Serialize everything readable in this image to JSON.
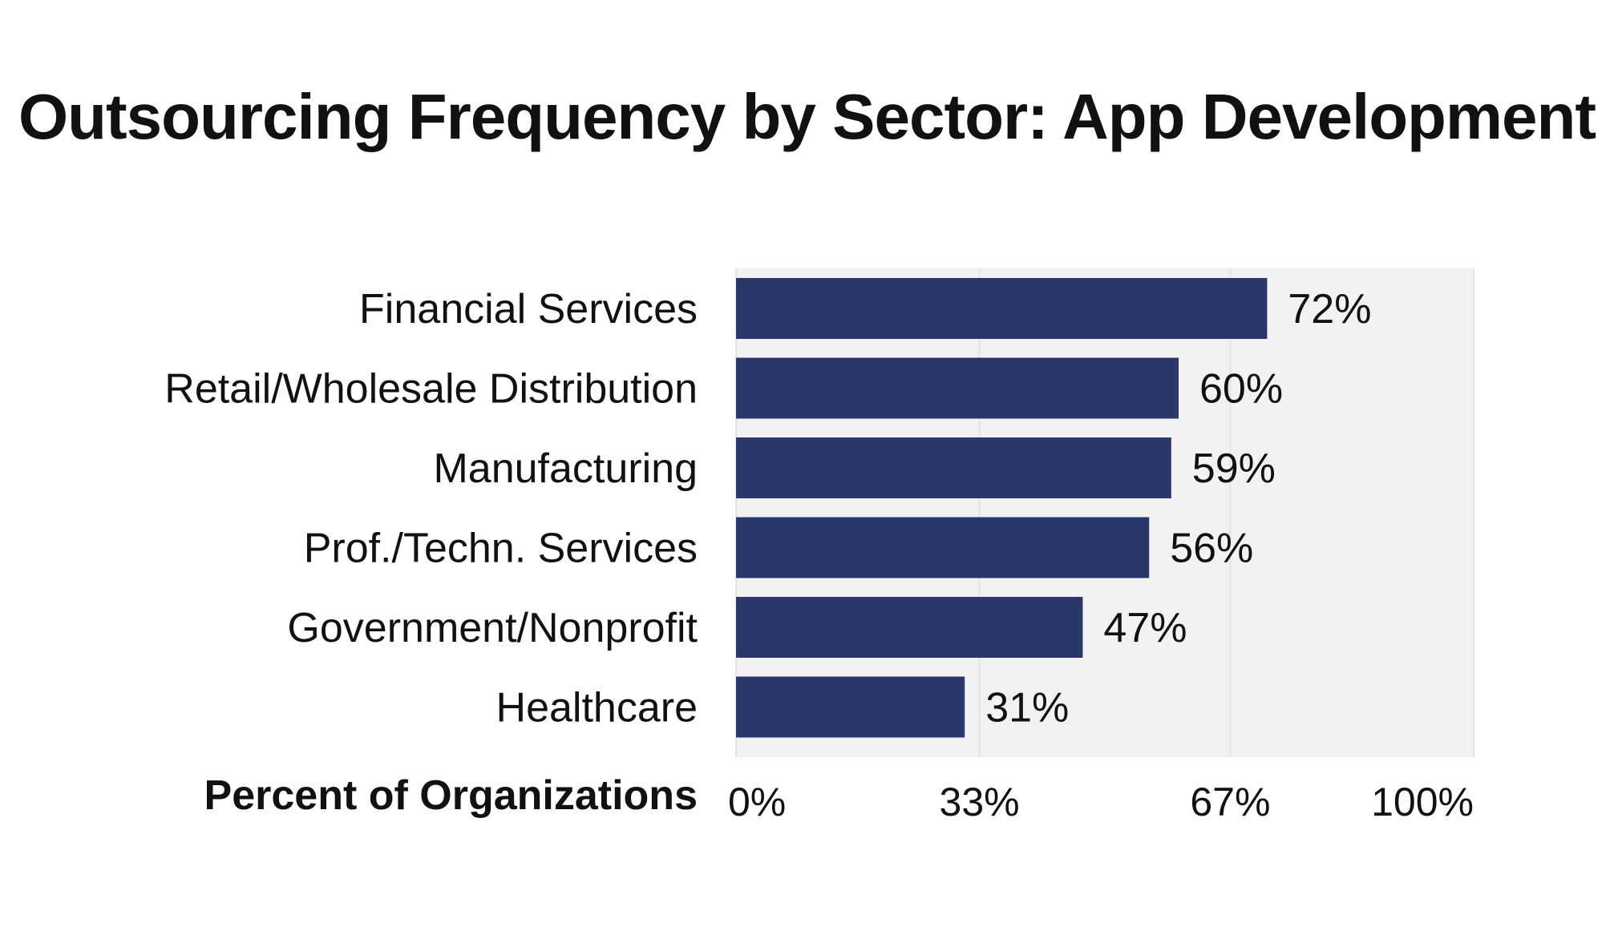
{
  "chart_data": {
    "type": "bar",
    "orientation": "horizontal",
    "title": "Outsourcing Frequency by Sector: App Development",
    "xlabel": "Percent of Organizations",
    "ylabel": "",
    "categories": [
      "Financial Services",
      "Retail/Wholesale Distribution",
      "Manufacturing",
      "Prof./Techn. Services",
      "Government/Nonprofit",
      "Healthcare"
    ],
    "values": [
      72,
      60,
      59,
      56,
      47,
      31
    ],
    "value_labels": [
      "72%",
      "60%",
      "59%",
      "56%",
      "47%",
      "31%"
    ],
    "xlim": [
      0,
      100
    ],
    "x_ticks": [
      0,
      33,
      67,
      100
    ],
    "x_tick_labels": [
      "0%",
      "33%",
      "67%",
      "100%"
    ],
    "grid": true,
    "legend": "none",
    "colors": {
      "bar": "#2b376a",
      "plot_background": "#f2f2f2",
      "gridline": "#e4e4e4",
      "text": "#111111"
    }
  }
}
